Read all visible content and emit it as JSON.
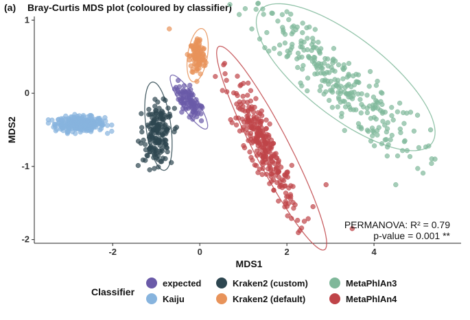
{
  "panel_label": "(a)",
  "annotation": {
    "line1": "PERMANOVA: R² = 0.79",
    "line2": "p-value = 0.001 **"
  },
  "legend": {
    "title": "Classifier",
    "items": [
      {
        "label": "expected",
        "color": "#6a5aa8"
      },
      {
        "label": "Kaiju",
        "color": "#87b4de"
      },
      {
        "label": "Kraken2 (custom)",
        "color": "#2d4650"
      },
      {
        "label": "Kraken2 (default)",
        "color": "#e8935a"
      },
      {
        "label": "MetaPhlAn3",
        "color": "#7fb89a"
      },
      {
        "label": "MetaPhlAn4",
        "color": "#bf4448"
      }
    ]
  },
  "chart_data": {
    "type": "scatter",
    "title": "Bray-Curtis MDS plot (coloured by classifier)",
    "xlabel": "MDS1",
    "ylabel": "MDS2",
    "xlim": [
      -3.8,
      6.0
    ],
    "ylim": [
      -2.05,
      1.05
    ],
    "xticks": [
      -2,
      0,
      2,
      4
    ],
    "yticks": [
      -2,
      -1,
      0,
      1
    ],
    "grid": false,
    "legend_position": "bottom",
    "series": [
      {
        "name": "expected",
        "color": "#6a5aa8",
        "cluster": {
          "cx": -0.25,
          "cy": -0.12,
          "sx": 0.18,
          "sy": 0.08,
          "rot": -35,
          "n": 90
        },
        "ellipse": {
          "cx": -0.25,
          "cy": -0.12,
          "rx": 0.55,
          "ry": 0.14,
          "angle": -40
        }
      },
      {
        "name": "Kaiju",
        "color": "#87b4de",
        "cluster": {
          "cx": -2.75,
          "cy": -0.42,
          "sx": 0.28,
          "sy": 0.05,
          "rot": 0,
          "n": 320
        },
        "ellipse": null
      },
      {
        "name": "Kraken2 (custom)",
        "color": "#2d4650",
        "cluster": {
          "cx": -0.97,
          "cy": -0.55,
          "sx": 0.16,
          "sy": 0.2,
          "rot": -10,
          "n": 170
        },
        "ellipse": {
          "cx": -0.95,
          "cy": -0.45,
          "rx": 0.62,
          "ry": 0.28,
          "angle": -75
        }
      },
      {
        "name": "Kraken2 (default)",
        "color": "#e8935a",
        "cluster": {
          "cx": -0.05,
          "cy": 0.5,
          "sx": 0.09,
          "sy": 0.13,
          "rot": 0,
          "n": 110
        },
        "ellipse": {
          "cx": -0.05,
          "cy": 0.52,
          "rx": 0.22,
          "ry": 0.38,
          "angle": -20
        },
        "extra_points": [
          {
            "x": -0.7,
            "y": 0.88
          }
        ]
      },
      {
        "name": "MetaPhlAn3",
        "color": "#7fb89a",
        "cluster": {
          "cx": 3.1,
          "cy": 0.2,
          "sx": 1.05,
          "sy": 0.2,
          "rot": -28,
          "n": 280
        },
        "ellipse": {
          "cx": 3.35,
          "cy": 0.22,
          "rx": 2.2,
          "ry": 0.62,
          "angle": -22
        },
        "extra_points": [
          {
            "x": 5.3,
            "y": -0.5
          },
          {
            "x": 5.0,
            "y": -0.3
          },
          {
            "x": 4.5,
            "y": -1.25
          },
          {
            "x": 5.4,
            "y": -0.9
          },
          {
            "x": 2.0,
            "y": 0.5
          },
          {
            "x": 1.9,
            "y": 0.9
          }
        ]
      },
      {
        "name": "MetaPhlAn4",
        "color": "#bf4448",
        "cluster": {
          "cx": 1.45,
          "cy": -0.72,
          "sx": 0.55,
          "sy": 0.13,
          "rot": -50,
          "n": 280
        },
        "ellipse": {
          "cx": 1.65,
          "cy": -0.75,
          "rx": 1.85,
          "ry": 0.34,
          "angle": -48
        },
        "extra_points": [
          {
            "x": 2.6,
            "y": -1.55
          },
          {
            "x": 2.9,
            "y": -1.25
          },
          {
            "x": 3.5,
            "y": -1.85
          },
          {
            "x": 2.4,
            "y": -1.75
          }
        ]
      }
    ]
  }
}
